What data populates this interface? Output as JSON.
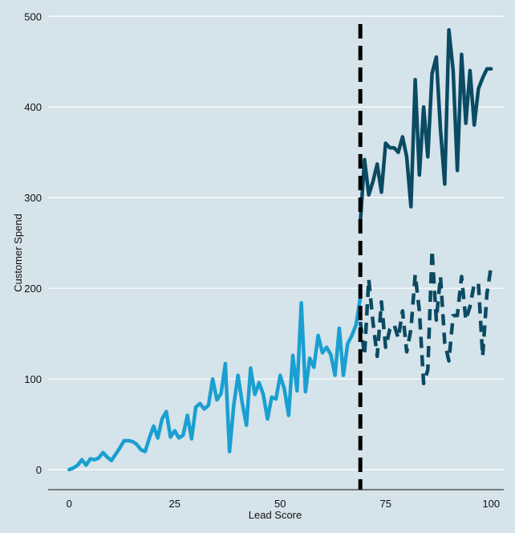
{
  "chart_data": {
    "type": "line",
    "title": "",
    "xlabel": "Lead Score",
    "ylabel": "Customer Spend",
    "xlim": [
      -5,
      103
    ],
    "ylim": [
      -22,
      502
    ],
    "x_ticks": [
      0,
      25,
      50,
      75,
      100
    ],
    "y_ticks": [
      0,
      100,
      200,
      300,
      400,
      500
    ],
    "grid": "horizontal",
    "threshold_x": 69,
    "colors": {
      "background": "#d5e3ea",
      "grid": "#ffffff",
      "pre_threshold": "#1a9fd1",
      "post_high": "#0b4a63",
      "post_low": "#0b4a63",
      "threshold_line": "#000000"
    },
    "series": [
      {
        "x": [
          0,
          1,
          2,
          3,
          4,
          5,
          6,
          7,
          8,
          9,
          10,
          11,
          12,
          13,
          14,
          15,
          16,
          17,
          18,
          19,
          20,
          21,
          22,
          23,
          24,
          25,
          26,
          27,
          28,
          29,
          30,
          31,
          32,
          33,
          34,
          35,
          36,
          37,
          38,
          39,
          40,
          41,
          42,
          43,
          44,
          45,
          46,
          47,
          48,
          49,
          50,
          51,
          52,
          53,
          54,
          55,
          56,
          57,
          58,
          59,
          60,
          61,
          62,
          63,
          64,
          65,
          66,
          67,
          68,
          69
        ],
        "y": [
          0,
          2,
          5,
          11,
          5,
          12,
          11,
          13,
          19,
          14,
          10,
          17,
          24,
          32,
          32,
          31,
          28,
          22,
          20,
          35,
          48,
          35,
          56,
          64,
          36,
          43,
          35,
          38,
          60,
          34,
          69,
          73,
          67,
          71,
          100,
          77,
          84,
          117,
          20,
          71,
          104,
          74,
          49,
          112,
          83,
          96,
          83,
          56,
          80,
          78,
          104,
          89,
          60,
          126,
          87,
          184,
          86,
          123,
          113,
          148,
          129,
          135,
          127,
          104,
          156,
          104,
          139,
          148,
          160,
          190
        ]
      },
      {
        "x": [
          69,
          70,
          71,
          72,
          73,
          74,
          75,
          76,
          77,
          78,
          79,
          80,
          81,
          82,
          83,
          84,
          85,
          86,
          87,
          88,
          89,
          90,
          91,
          92,
          93,
          94,
          95,
          96,
          97,
          98,
          99,
          100
        ],
        "y": [
          273,
          342,
          303,
          318,
          337,
          306,
          360,
          355,
          355,
          350,
          367,
          345,
          290,
          430,
          325,
          400,
          345,
          437,
          455,
          375,
          315,
          485,
          440,
          330,
          458,
          382,
          440,
          380,
          420,
          432,
          442,
          442
        ]
      },
      {
        "x": [
          69,
          70,
          71,
          72,
          73,
          74,
          75,
          76,
          77,
          78,
          79,
          80,
          81,
          82,
          83,
          84,
          85,
          86,
          87,
          88,
          89,
          90,
          91,
          92,
          93,
          94,
          95,
          96,
          97,
          98,
          99,
          100
        ],
        "y": [
          163,
          126,
          210,
          162,
          125,
          185,
          135,
          155,
          160,
          145,
          175,
          130,
          155,
          215,
          175,
          95,
          110,
          242,
          165,
          213,
          140,
          120,
          170,
          170,
          213,
          165,
          180,
          205,
          205,
          125,
          194,
          224
        ]
      }
    ]
  }
}
